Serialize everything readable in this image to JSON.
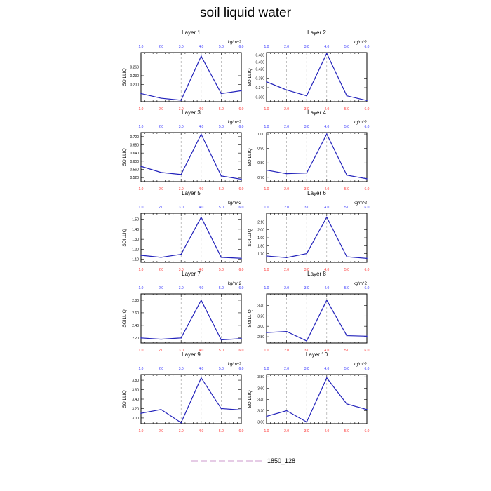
{
  "figure": {
    "title": "soil liquid water",
    "legend": {
      "label": "1850_128",
      "line_color": "#cc99cc",
      "line_style": "dashed"
    },
    "colors": {
      "line": "#2222bb",
      "top_ticks": "#3333ff",
      "bottom_ticks": "#ff3333",
      "axis": "#000000",
      "vline": "#999999"
    }
  },
  "chart_data": [
    {
      "type": "line",
      "title": "Layer 1",
      "ylabel": "SOILLIQ",
      "units": "kg/m^2",
      "x": [
        1,
        2,
        3,
        4,
        5,
        6
      ],
      "xlim": [
        1,
        6
      ],
      "xticklabels": [
        "1.0",
        "2.0",
        "3.0",
        "4.0",
        "5.0",
        "6.0"
      ],
      "ylim": [
        0.14,
        0.31
      ],
      "yticks": [
        0.2,
        0.23,
        0.26
      ],
      "yticklabels": [
        "0.200",
        "0.230",
        "0.260"
      ],
      "series": [
        {
          "name": "1850_128",
          "values": [
            0.168,
            0.152,
            0.145,
            0.298,
            0.168,
            0.178
          ]
        }
      ]
    },
    {
      "type": "line",
      "title": "Layer 2",
      "ylabel": "SOILLIQ",
      "units": "kg/m^2",
      "x": [
        1,
        2,
        3,
        4,
        5,
        6
      ],
      "xlim": [
        1,
        6
      ],
      "xticklabels": [
        "1.0",
        "2.0",
        "3.0",
        "4.0",
        "5.0",
        "6.0"
      ],
      "ylim": [
        0.28,
        0.49
      ],
      "yticks": [
        0.3,
        0.34,
        0.38,
        0.42,
        0.45,
        0.48
      ],
      "yticklabels": [
        "0.300",
        "0.340",
        "0.380",
        "0.420",
        "0.450",
        "0.480"
      ],
      "series": [
        {
          "name": "1850_128",
          "values": [
            0.365,
            0.33,
            0.305,
            0.487,
            0.305,
            0.285
          ]
        }
      ]
    },
    {
      "type": "line",
      "title": "Layer 3",
      "ylabel": "SOILLIQ",
      "units": "kg/m^2",
      "x": [
        1,
        2,
        3,
        4,
        5,
        6
      ],
      "xlim": [
        1,
        6
      ],
      "xticklabels": [
        "1.0",
        "2.0",
        "3.0",
        "4.0",
        "5.0",
        "6.0"
      ],
      "ylim": [
        0.5,
        0.74
      ],
      "yticks": [
        0.52,
        0.56,
        0.6,
        0.64,
        0.68,
        0.72
      ],
      "yticklabels": [
        "0.520",
        "0.560",
        "0.600",
        "0.640",
        "0.680",
        "0.720"
      ],
      "series": [
        {
          "name": "1850_128",
          "values": [
            0.575,
            0.545,
            0.535,
            0.732,
            0.528,
            0.512
          ]
        }
      ]
    },
    {
      "type": "line",
      "title": "Layer 4",
      "ylabel": "SOILLIQ",
      "units": "kg/m^2",
      "x": [
        1,
        2,
        3,
        4,
        5,
        6
      ],
      "xlim": [
        1,
        6
      ],
      "xticklabels": [
        "1.0",
        "2.0",
        "3.0",
        "4.0",
        "5.0",
        "6.0"
      ],
      "ylim": [
        0.67,
        1.01
      ],
      "yticks": [
        0.7,
        0.8,
        0.9,
        1.0
      ],
      "yticklabels": [
        "0.70",
        "0.80",
        "0.90",
        "1.00"
      ],
      "series": [
        {
          "name": "1850_128",
          "values": [
            0.75,
            0.725,
            0.73,
            1.0,
            0.715,
            0.69
          ]
        }
      ]
    },
    {
      "type": "line",
      "title": "Layer 5",
      "ylabel": "SOILLIQ",
      "units": "kg/m^2",
      "x": [
        1,
        2,
        3,
        4,
        5,
        6
      ],
      "xlim": [
        1,
        6
      ],
      "xticklabels": [
        "1.0",
        "2.0",
        "3.0",
        "4.0",
        "5.0",
        "6.0"
      ],
      "ylim": [
        1.07,
        1.56
      ],
      "yticks": [
        1.1,
        1.2,
        1.3,
        1.4,
        1.5
      ],
      "yticklabels": [
        "1.10",
        "1.20",
        "1.30",
        "1.40",
        "1.50"
      ],
      "series": [
        {
          "name": "1850_128",
          "values": [
            1.14,
            1.12,
            1.15,
            1.52,
            1.12,
            1.11
          ]
        }
      ]
    },
    {
      "type": "line",
      "title": "Layer 6",
      "ylabel": "SOILLIQ",
      "units": "kg/m^2",
      "x": [
        1,
        2,
        3,
        4,
        5,
        6
      ],
      "xlim": [
        1,
        6
      ],
      "xticklabels": [
        "1.0",
        "2.0",
        "3.0",
        "4.0",
        "5.0",
        "6.0"
      ],
      "ylim": [
        1.59,
        2.21
      ],
      "yticks": [
        1.7,
        1.8,
        1.9,
        2.0,
        2.1
      ],
      "yticklabels": [
        "1.70",
        "1.80",
        "1.90",
        "2.00",
        "2.10"
      ],
      "series": [
        {
          "name": "1850_128",
          "values": [
            1.67,
            1.65,
            1.7,
            2.16,
            1.66,
            1.64
          ]
        }
      ]
    },
    {
      "type": "line",
      "title": "Layer 7",
      "ylabel": "SOILLIQ",
      "units": "kg/m^2",
      "x": [
        1,
        2,
        3,
        4,
        5,
        6
      ],
      "xlim": [
        1,
        6
      ],
      "xticklabels": [
        "1.0",
        "2.0",
        "3.0",
        "4.0",
        "5.0",
        "6.0"
      ],
      "ylim": [
        2.12,
        2.9
      ],
      "yticks": [
        2.2,
        2.4,
        2.6,
        2.8
      ],
      "yticklabels": [
        "2.20",
        "2.40",
        "2.60",
        "2.80"
      ],
      "series": [
        {
          "name": "1850_128",
          "values": [
            2.2,
            2.18,
            2.2,
            2.8,
            2.17,
            2.19
          ]
        }
      ]
    },
    {
      "type": "line",
      "title": "Layer 8",
      "ylabel": "SOILLIQ",
      "units": "kg/m^2",
      "x": [
        1,
        2,
        3,
        4,
        5,
        6
      ],
      "xlim": [
        1,
        6
      ],
      "xticklabels": [
        "1.0",
        "2.0",
        "3.0",
        "4.0",
        "5.0",
        "6.0"
      ],
      "ylim": [
        2.68,
        3.62
      ],
      "yticks": [
        2.8,
        3.0,
        3.2,
        3.4
      ],
      "yticklabels": [
        "2.80",
        "3.00",
        "3.20",
        "3.40"
      ],
      "series": [
        {
          "name": "1850_128",
          "values": [
            2.88,
            2.9,
            2.72,
            3.5,
            2.82,
            2.81
          ]
        }
      ]
    },
    {
      "type": "line",
      "title": "Layer 9",
      "ylabel": "SOILLIQ",
      "units": "kg/m^2",
      "x": [
        1,
        2,
        3,
        4,
        5,
        6
      ],
      "xlim": [
        1,
        6
      ],
      "xticklabels": [
        "1.0",
        "2.0",
        "3.0",
        "4.0",
        "5.0",
        "6.0"
      ],
      "ylim": [
        2.88,
        3.92
      ],
      "yticks": [
        3.0,
        3.2,
        3.4,
        3.6,
        3.8
      ],
      "yticklabels": [
        "3.00",
        "3.20",
        "3.40",
        "3.60",
        "3.80"
      ],
      "series": [
        {
          "name": "1850_128",
          "values": [
            3.1,
            3.18,
            2.9,
            3.85,
            3.2,
            3.17
          ]
        }
      ]
    },
    {
      "type": "line",
      "title": "Layer 10",
      "ylabel": "SOILLIQ",
      "units": "kg/m^2",
      "x": [
        1,
        2,
        3,
        4,
        5,
        6
      ],
      "xlim": [
        1,
        6
      ],
      "xticklabels": [
        "1.0",
        "2.0",
        "3.0",
        "4.0",
        "5.0",
        "6.0"
      ],
      "ylim": [
        2.97,
        3.84
      ],
      "yticks": [
        3.0,
        3.2,
        3.4,
        3.6,
        3.8
      ],
      "yticklabels": [
        "3.00",
        "3.20",
        "3.40",
        "3.60",
        "3.80"
      ],
      "series": [
        {
          "name": "1850_128",
          "values": [
            3.1,
            3.2,
            3.0,
            3.78,
            3.32,
            3.22
          ]
        }
      ]
    }
  ]
}
